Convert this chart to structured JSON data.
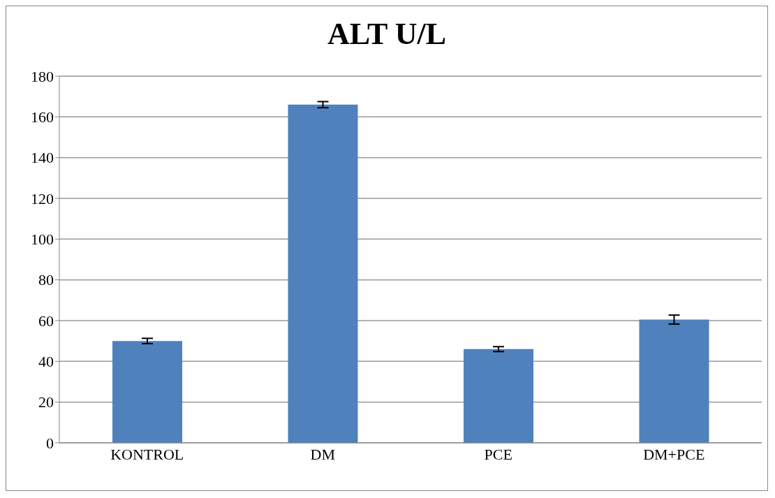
{
  "chart_data": {
    "type": "bar",
    "title": "ALT U/L",
    "categories": [
      "KONTROL",
      "DM",
      "PCE",
      "DM+PCE"
    ],
    "values": [
      50,
      166,
      46,
      60.5
    ],
    "errors": [
      1.3,
      1.5,
      1.2,
      2.2
    ],
    "color": "#4f81bd",
    "ylim": [
      0,
      180
    ],
    "yticks": [
      0,
      20,
      40,
      60,
      80,
      100,
      120,
      140,
      160,
      180
    ],
    "grid": "y"
  }
}
